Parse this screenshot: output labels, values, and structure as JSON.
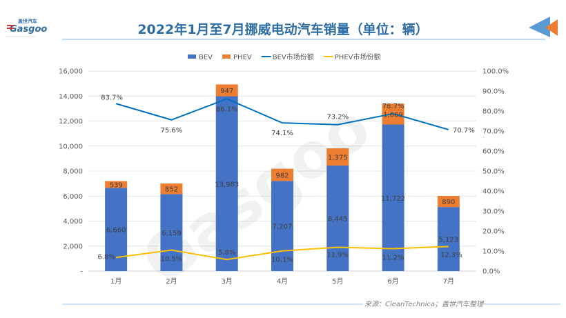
{
  "header": {
    "title": "2022年1月至7月挪威电动汽车销量（单位：辆）",
    "logo_text": "盖世汽车 Gasgoo"
  },
  "footer": {
    "source": "来源：CleanTechnica；盖世汽车整理"
  },
  "colors": {
    "bev": "#4472c4",
    "phev": "#ed7d31",
    "bev_share": "#0070c0",
    "phev_share": "#ffc000",
    "title": "#2e6da4"
  },
  "chart_data": {
    "type": "bar",
    "stacked": true,
    "title": "2022年1月至7月挪威电动汽车销量（单位：辆）",
    "categories": [
      "1月",
      "2月",
      "3月",
      "4月",
      "5月",
      "6月",
      "7月"
    ],
    "series": [
      {
        "name": "BEV",
        "type": "bar",
        "axis": "left",
        "values": [
          6660,
          6159,
          13983,
          7207,
          8445,
          11722,
          5123
        ],
        "labels": [
          "6,660",
          "6,159",
          "13,983",
          "7,207",
          "8,445",
          "11,722",
          "5,123"
        ]
      },
      {
        "name": "PHEV",
        "type": "bar",
        "axis": "left",
        "values": [
          539,
          852,
          947,
          982,
          1375,
          1669,
          890
        ],
        "labels": [
          "539",
          "852",
          "947",
          "982",
          "1,375",
          "1,669",
          "890"
        ]
      },
      {
        "name": "BEV市场份额",
        "type": "line",
        "axis": "right",
        "values": [
          83.7,
          75.6,
          86.1,
          74.1,
          73.2,
          78.7,
          70.7
        ],
        "labels": [
          "83.7%",
          "75.6%",
          "86.1%",
          "74.1%",
          "73.2%",
          "78.7%",
          "70.7%"
        ]
      },
      {
        "name": "PHEV市场份额",
        "type": "line",
        "axis": "right",
        "values": [
          6.8,
          10.5,
          5.8,
          10.1,
          11.9,
          11.2,
          12.3
        ],
        "labels": [
          "6.8%",
          "10.5%",
          "5.8%",
          "10.1%",
          "11.9%",
          "11.2%",
          "12.3%"
        ]
      }
    ],
    "y_left": {
      "range": [
        0,
        16000
      ],
      "ticks": [
        "-",
        "2,000",
        "4,000",
        "6,000",
        "8,000",
        "10,000",
        "12,000",
        "14,000",
        "16,000"
      ]
    },
    "y_right": {
      "range": [
        0,
        100
      ],
      "ticks": [
        "0.0%",
        "10.0%",
        "20.0%",
        "30.0%",
        "40.0%",
        "50.0%",
        "60.0%",
        "70.0%",
        "80.0%",
        "90.0%",
        "100.0%"
      ]
    },
    "grid": true,
    "legend": "top",
    "watermark": "盖世汽车 Gasgoo"
  }
}
